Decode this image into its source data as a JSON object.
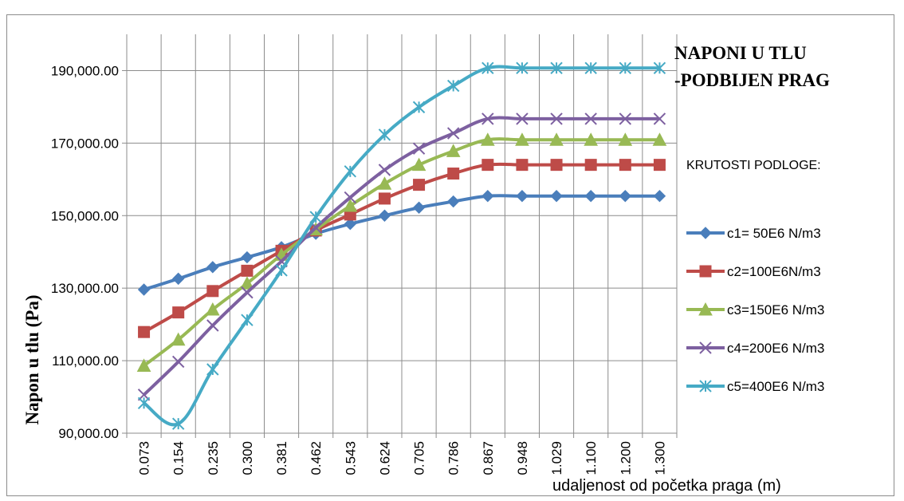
{
  "chart_data": {
    "type": "line",
    "title_lines": [
      "NAPONI U TLU",
      "-PODBIJEN PRAG"
    ],
    "xlabel": "udaljenost od početka praga (m)",
    "ylabel": "Napon u tlu (Pa)",
    "legend_title": "KRUTOSTI PODLOGE:",
    "legend_position": "right",
    "grid": true,
    "ylim": [
      90000,
      200000
    ],
    "y_ticks": [
      90000,
      110000,
      130000,
      150000,
      170000,
      190000
    ],
    "y_tick_labels": [
      "90,000.00",
      "110,000.00",
      "130,000.00",
      "150,000.00",
      "170,000.00",
      "190,000.00"
    ],
    "categories": [
      "0.073",
      "0.154",
      "0.235",
      "0.300",
      "0.381",
      "0.462",
      "0.543",
      "0.624",
      "0.705",
      "0.786",
      "0.867",
      "0.948",
      "1.029",
      "1.100",
      "1.200",
      "1.300"
    ],
    "series": [
      {
        "name": "c1=  50E6 N/m3",
        "color": "#4a7ebb",
        "marker": "diamond",
        "values": [
          129600,
          132600,
          135800,
          138500,
          141300,
          145000,
          147700,
          150000,
          152200,
          153900,
          155400,
          155400,
          155400,
          155400,
          155400,
          155400
        ]
      },
      {
        "name": "c2=100E6N/m3",
        "color": "#be4b48",
        "marker": "square",
        "values": [
          117900,
          123300,
          129200,
          134800,
          140300,
          145900,
          150300,
          154700,
          158500,
          161600,
          164000,
          164000,
          164000,
          164000,
          164000,
          164000
        ]
      },
      {
        "name": "c3=150E6 N/m3",
        "color": "#98b954",
        "marker": "triangle",
        "values": [
          108600,
          115800,
          124100,
          131300,
          139200,
          146200,
          152700,
          158800,
          164000,
          167800,
          170900,
          170900,
          170900,
          170900,
          170900,
          170900
        ]
      },
      {
        "name": "c4=200E6 N/m3",
        "color": "#7d60a0",
        "marker": "x",
        "values": [
          100600,
          109700,
          119700,
          128800,
          137400,
          146700,
          155000,
          162600,
          168500,
          172700,
          176700,
          176700,
          176700,
          176700,
          176700,
          176700
        ]
      },
      {
        "name": "c5=400E6 N/m3",
        "color": "#46aac5",
        "marker": "star",
        "values": [
          98300,
          92600,
          107600,
          121200,
          134900,
          149600,
          162200,
          172300,
          179900,
          185800,
          190700,
          190700,
          190700,
          190700,
          190700,
          190700
        ]
      }
    ]
  }
}
